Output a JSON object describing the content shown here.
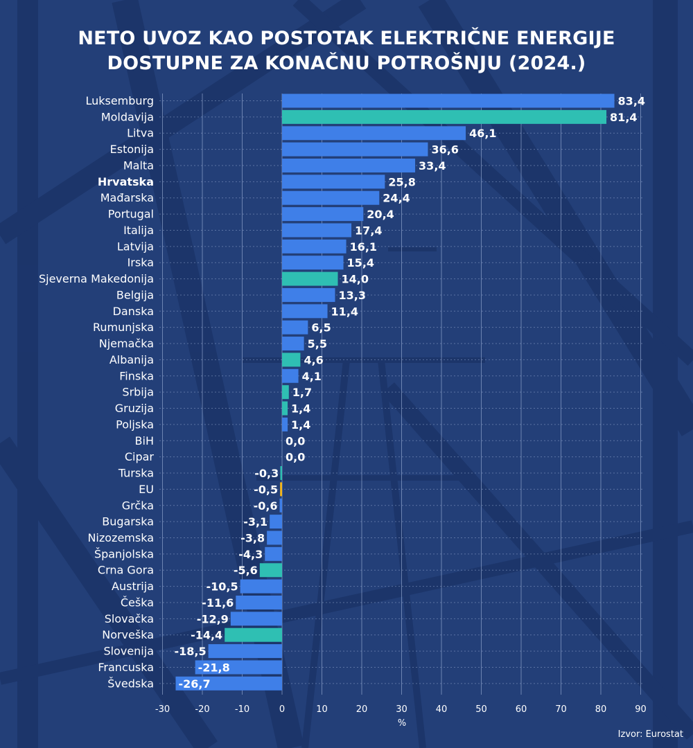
{
  "title_lines": [
    "NETO UVOZ KAO POSTOTAK ELEKTRIČNE ENERGIJE",
    "DOSTUPNE ZA KONAČNU POTROŠNJU (2024.)"
  ],
  "source": "Izvor: Eurostat",
  "colors": {
    "background": "#233f78",
    "eu_member": "#3f7fe8",
    "non_eu": "#2fbfb3",
    "eu_average": "#f2b51b",
    "text": "#ffffff"
  },
  "chart_data": {
    "type": "bar",
    "orientation": "horizontal",
    "xlabel": "%",
    "xlim": [
      -30,
      90
    ],
    "xticks": [
      -30,
      -20,
      -10,
      0,
      10,
      20,
      30,
      40,
      50,
      60,
      70,
      80,
      90
    ],
    "grid": true,
    "categories": [
      "Luksemburg",
      "Moldavija",
      "Litva",
      "Estonija",
      "Malta",
      "Hrvatska",
      "Mađarska",
      "Portugal",
      "Italija",
      "Latvija",
      "Irska",
      "Sjeverna Makedonija",
      "Belgija",
      "Danska",
      "Rumunjska",
      "Njemačka",
      "Albanija",
      "Finska",
      "Srbija",
      "Gruzija",
      "Poljska",
      "BiH",
      "Cipar",
      "Turska",
      "EU",
      "Grčka",
      "Bugarska",
      "Nizozemska",
      "Španjolska",
      "Crna Gora",
      "Austrija",
      "Češka",
      "Slovačka",
      "Norveška",
      "Slovenija",
      "Francuska",
      "Švedska"
    ],
    "values": [
      83.4,
      81.4,
      46.1,
      36.6,
      33.4,
      25.8,
      24.4,
      20.4,
      17.4,
      16.1,
      15.4,
      14.0,
      13.3,
      11.4,
      6.5,
      5.5,
      4.6,
      4.1,
      1.7,
      1.4,
      1.4,
      0.0,
      0.0,
      -0.3,
      -0.5,
      -0.6,
      -3.1,
      -3.8,
      -4.3,
      -5.6,
      -10.5,
      -11.6,
      -12.9,
      -14.4,
      -18.5,
      -21.8,
      -26.7
    ],
    "labels": [
      "83,4",
      "81,4",
      "46,1",
      "36,6",
      "33,4",
      "25,8",
      "24,4",
      "20,4",
      "17,4",
      "16,1",
      "15,4",
      "14,0",
      "13,3",
      "11,4",
      "6,5",
      "5,5",
      "4,6",
      "4,1",
      "1,7",
      "1,4",
      "1,4",
      "0,0",
      "0,0",
      "-0,3",
      "-0,5",
      "-0,6",
      "-3,1",
      "-3,8",
      "-4,3",
      "-5,6",
      "-10,5",
      "-11,6",
      "-12,9",
      "-14,4",
      "-18,5",
      "-21,8",
      "-26,7"
    ],
    "groups": [
      "eu",
      "non_eu",
      "eu",
      "eu",
      "eu",
      "eu",
      "eu",
      "eu",
      "eu",
      "eu",
      "eu",
      "non_eu",
      "eu",
      "eu",
      "eu",
      "eu",
      "non_eu",
      "eu",
      "non_eu",
      "non_eu",
      "eu",
      "non_eu",
      "eu",
      "non_eu",
      "eu_average",
      "eu",
      "eu",
      "eu",
      "eu",
      "non_eu",
      "eu",
      "eu",
      "eu",
      "non_eu",
      "eu",
      "eu",
      "eu"
    ],
    "highlighted": [
      "Hrvatska"
    ]
  }
}
